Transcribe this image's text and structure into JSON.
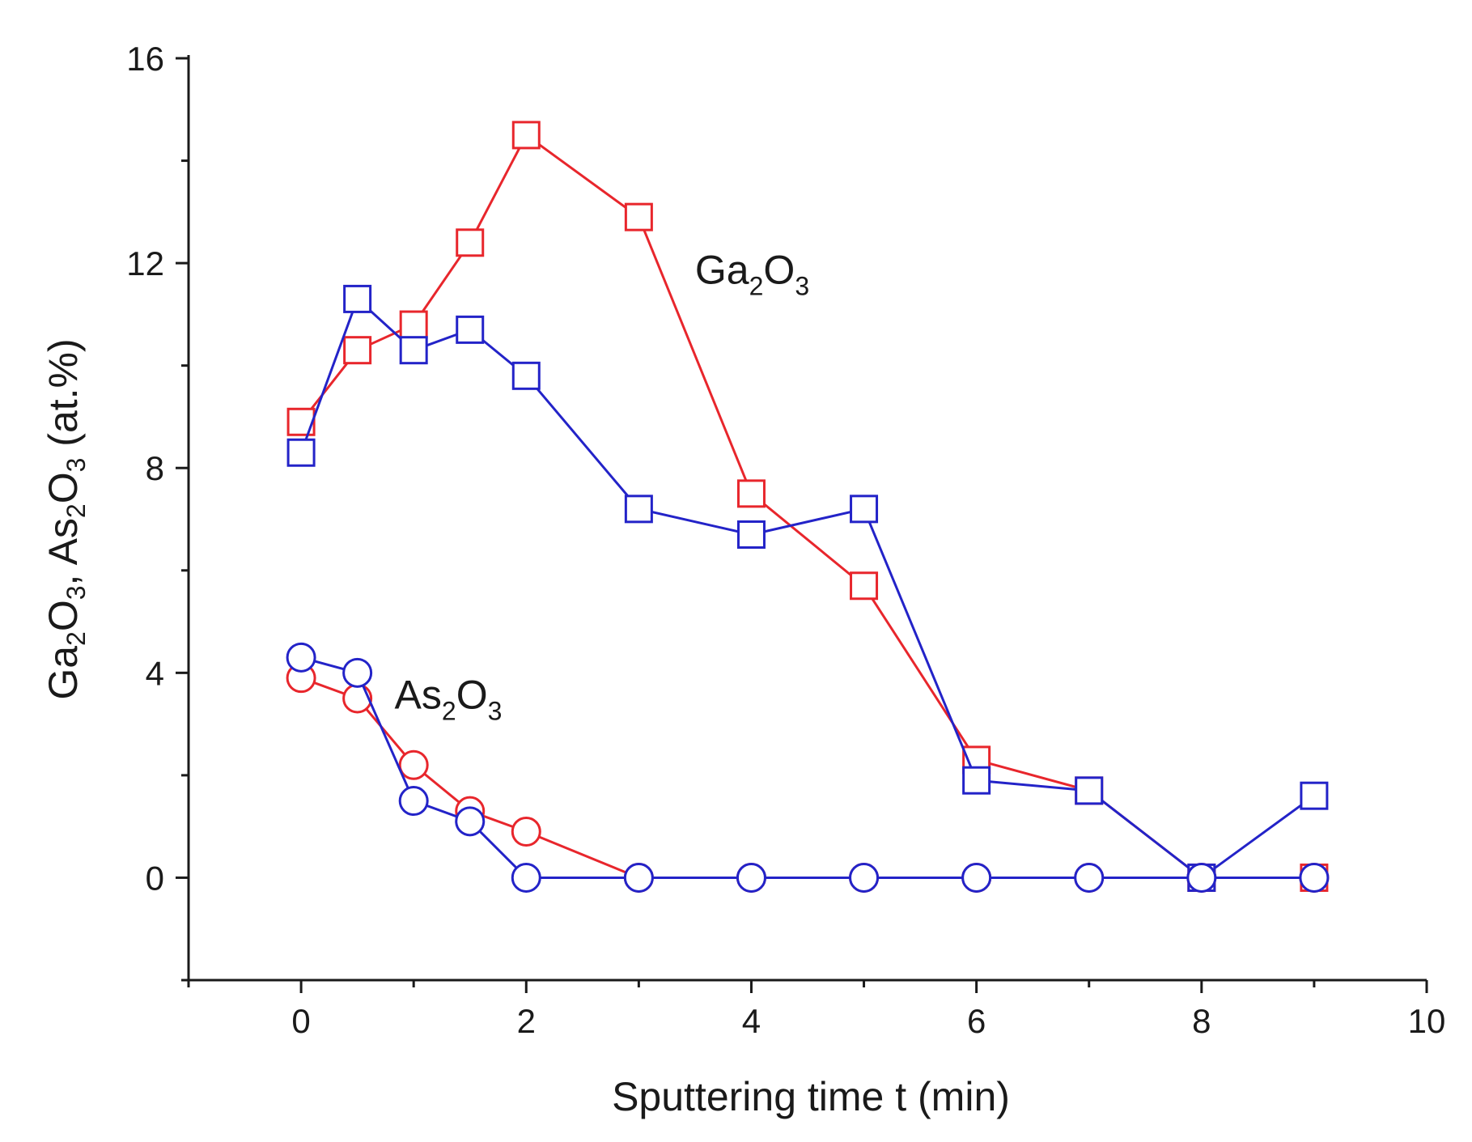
{
  "chart_data": {
    "type": "line",
    "title": "",
    "xlabel": "Sputtering time t (min)",
    "ylabel_parts": [
      "Ga",
      "2",
      "O",
      "3",
      ", As",
      "2",
      "O",
      "3",
      " (at.%)"
    ],
    "xlim": [
      -1,
      10
    ],
    "ylim": [
      -2,
      16
    ],
    "xticks": [
      0,
      2,
      4,
      6,
      8,
      10
    ],
    "yticks": [
      0,
      4,
      8,
      12,
      16
    ],
    "xtick_labels": [
      "0",
      "2",
      "4",
      "6",
      "8",
      "10"
    ],
    "ytick_labels": [
      "0",
      "4",
      "8",
      "12",
      "16"
    ],
    "grid": false,
    "annotations": [
      {
        "id": "ga2o3",
        "parts": [
          "Ga",
          "2",
          "O",
          "3"
        ],
        "x": 3.5,
        "y": 11.6
      },
      {
        "id": "as2o3",
        "parts": [
          "As",
          "2",
          "O",
          "3"
        ],
        "x": 0.83,
        "y": 3.3
      }
    ],
    "series": [
      {
        "id": "ga-red",
        "marker": "square",
        "color": "#e8262c",
        "x": [
          0,
          0.5,
          1,
          1.5,
          2,
          3,
          4,
          5,
          6,
          7,
          8,
          9
        ],
        "y": [
          8.9,
          10.3,
          10.8,
          12.4,
          14.5,
          12.9,
          7.5,
          5.7,
          2.3,
          1.7,
          0,
          0
        ]
      },
      {
        "id": "ga-blue",
        "marker": "square",
        "color": "#2323c8",
        "x": [
          0,
          0.5,
          1,
          1.5,
          2,
          3,
          4,
          5,
          6,
          7,
          8,
          9
        ],
        "y": [
          8.3,
          11.3,
          10.3,
          10.7,
          9.8,
          7.2,
          6.7,
          7.2,
          1.9,
          1.7,
          0,
          1.6
        ]
      },
      {
        "id": "as-red",
        "marker": "circle",
        "color": "#e8262c",
        "x": [
          0,
          0.5,
          1,
          1.5,
          2,
          3,
          4,
          5,
          6,
          7,
          8,
          9
        ],
        "y": [
          3.9,
          3.5,
          2.2,
          1.3,
          0.9,
          0,
          0,
          0,
          0,
          0,
          0,
          0
        ]
      },
      {
        "id": "as-blue",
        "marker": "circle",
        "color": "#2323c8",
        "x": [
          0,
          0.5,
          1,
          1.5,
          2,
          3,
          4,
          5,
          6,
          7,
          8,
          9
        ],
        "y": [
          4.3,
          4.0,
          1.5,
          1.1,
          0,
          0,
          0,
          0,
          0,
          0,
          0,
          0
        ]
      }
    ]
  }
}
